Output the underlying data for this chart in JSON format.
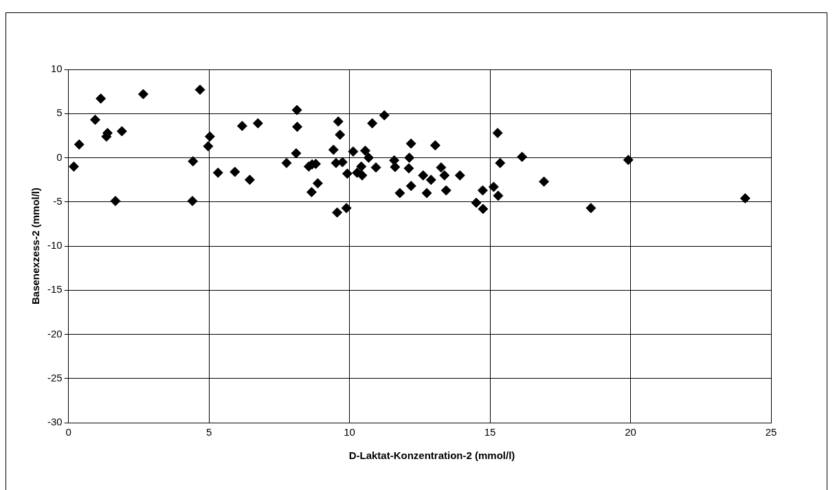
{
  "chart_data": {
    "type": "scatter",
    "xlabel": "D-Laktat-Konzentration-2 (mmol/l)",
    "ylabel": "Basenexzess-2 (mmol/l)",
    "xlim": [
      0,
      25
    ],
    "xticks": [
      0,
      5,
      10,
      15,
      20,
      25
    ],
    "ylim": [
      -30,
      10
    ],
    "yticks": [
      -30,
      -25,
      -20,
      -15,
      -10,
      -5,
      0,
      5,
      10
    ],
    "grid": true,
    "legend": false,
    "marker": "diamond",
    "series": [
      {
        "color": "#000000",
        "x": [
          0.19,
          0.38,
          1.15,
          0.95,
          1.39,
          1.35,
          1.67,
          1.9,
          2.66,
          4.68,
          4.43,
          4.41,
          5.03,
          4.97,
          5.32,
          5.92,
          6.18,
          6.45,
          6.74,
          7.76,
          8.1,
          8.13,
          8.14,
          8.55,
          8.67,
          8.8,
          8.87,
          8.65,
          9.6,
          9.66,
          9.43,
          9.52,
          9.75,
          9.92,
          9.56,
          9.89,
          10.13,
          10.56,
          10.68,
          10.42,
          10.27,
          10.45,
          10.94,
          10.81,
          11.24,
          11.59,
          11.62,
          11.79,
          12.19,
          12.13,
          12.11,
          12.19,
          12.62,
          12.9,
          12.75,
          13.05,
          13.26,
          13.38,
          13.44,
          13.93,
          14.51,
          14.75,
          14.74,
          15.27,
          15.36,
          15.13,
          15.29,
          16.14,
          16.92,
          18.59,
          19.92,
          24.08
        ],
        "values": [
          -1.0,
          1.5,
          6.7,
          4.3,
          2.8,
          2.4,
          -4.9,
          3.0,
          7.2,
          7.7,
          -0.4,
          -4.9,
          2.4,
          1.3,
          -1.7,
          -1.6,
          3.6,
          -2.5,
          3.9,
          -0.6,
          0.5,
          5.4,
          3.5,
          -1.0,
          -0.75,
          -0.7,
          -2.9,
          -3.9,
          4.1,
          2.6,
          0.9,
          -0.6,
          -0.5,
          -1.8,
          -6.2,
          -5.7,
          0.7,
          0.8,
          0.0,
          -1.0,
          -1.7,
          -2.0,
          -1.1,
          3.9,
          4.8,
          -0.3,
          -1.05,
          -4.0,
          1.6,
          0.0,
          -1.2,
          -3.2,
          -2.0,
          -2.5,
          -4.0,
          1.4,
          -1.1,
          -2.0,
          -3.7,
          -2.0,
          -5.1,
          -5.8,
          -3.7,
          2.8,
          -0.6,
          -3.3,
          -4.3,
          0.1,
          -2.7,
          -5.7,
          -0.25,
          -4.6
        ]
      }
    ]
  }
}
